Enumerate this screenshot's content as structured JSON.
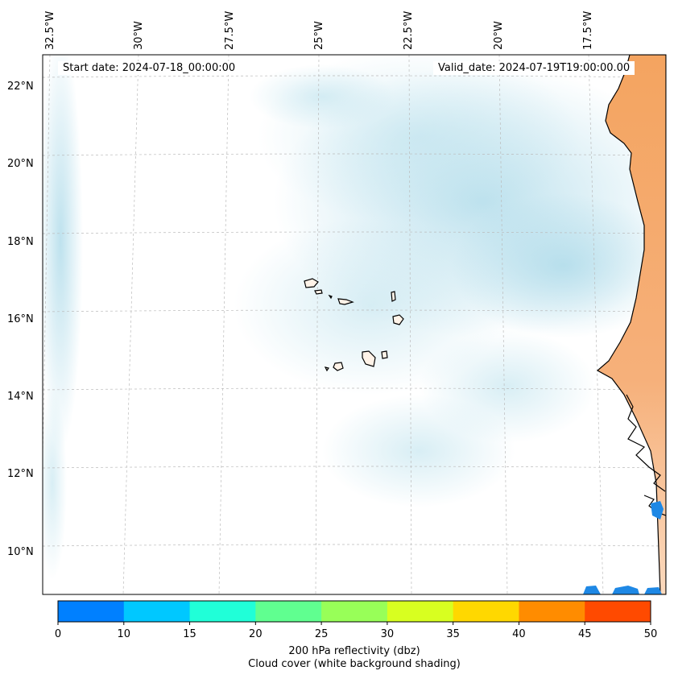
{
  "map": {
    "start_date": "Start date: 2024-07-18_00:00:00",
    "valid_date": "Valid_date: 2024-07-19T19:00:00.00",
    "lon_labels": [
      "32.5°W",
      "30°W",
      "27.5°W",
      "25°W",
      "22.5°W",
      "20°W",
      "17.5°W"
    ],
    "lat_labels": [
      "22°N",
      "20°N",
      "18°N",
      "16°N",
      "14°N",
      "12°N",
      "10°N"
    ]
  },
  "colorbar": {
    "ticks": [
      "0",
      "10",
      "15",
      "20",
      "25",
      "30",
      "35",
      "40",
      "45",
      "50"
    ],
    "colors": [
      "#0080ff",
      "#00c8ff",
      "#20ffd8",
      "#60ff90",
      "#98ff58",
      "#d8ff20",
      "#ffd800",
      "#ff8c00",
      "#ff4a00"
    ],
    "label": "200 hPa reflectivity (dbz)",
    "sublabel": "Cloud cover (white background shading)"
  },
  "colors": {
    "cloud": "#a8d8e8",
    "land_dust": "#f4a460",
    "reflectivity_low": "#1e88e5"
  }
}
